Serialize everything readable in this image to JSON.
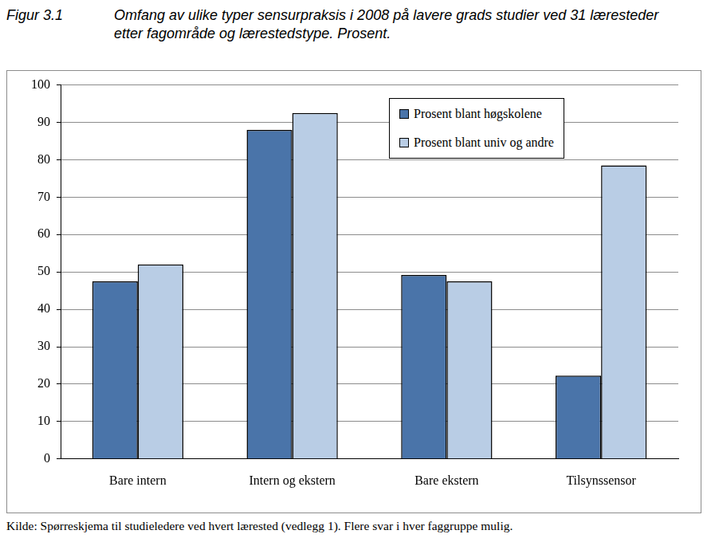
{
  "chart_data": {
    "type": "bar",
    "figure_label": "Figur 3.1",
    "title": "Omfang av ulike typer sensurpraksis i 2008 på lavere grads studier ved 31 læresteder etter fagområde og lærestedstype. Prosent.",
    "source": "Kilde: Spørreskjema til studieledere ved hvert lærested (vedlegg 1). Flere svar i hver faggruppe mulig.",
    "categories": [
      "Bare intern",
      "Intern og ekstern",
      "Bare ekstern",
      "Tilsynssensor"
    ],
    "series": [
      {
        "name": "Prosent blant høgskolene",
        "color": "#4a74a9",
        "values": [
          47.5,
          88,
          49.2,
          22.3
        ]
      },
      {
        "name": "Prosent blant univ og andre",
        "color": "#b9cde5",
        "values": [
          52,
          92.5,
          47.5,
          78.5
        ]
      }
    ],
    "ylim": [
      0,
      100
    ],
    "yticks": [
      0,
      10,
      20,
      30,
      40,
      50,
      60,
      70,
      80,
      90,
      100
    ],
    "grid": true,
    "legend": "upper right"
  }
}
